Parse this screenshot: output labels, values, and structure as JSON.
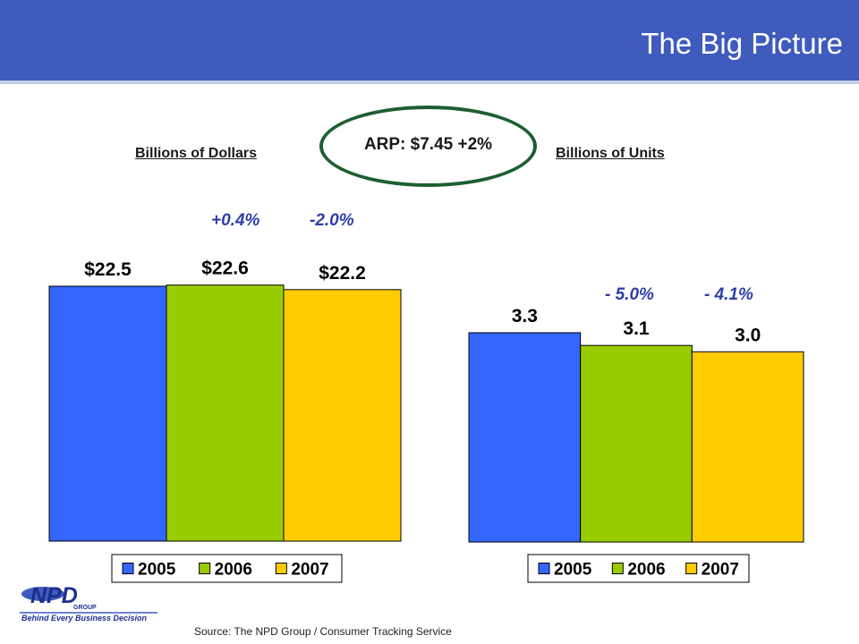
{
  "title": "The Big Picture",
  "arp": "ARP: $7.45  +2%",
  "source": "Source:  The NPD Group / Consumer Tracking Service",
  "logo": {
    "name": "NPD",
    "subtitle": "GROUP",
    "tagline": "Behind Every Business Decision"
  },
  "colors": {
    "header": "#3f5bbd",
    "y2005": "#3366ff",
    "y2006": "#99cc00",
    "y2007": "#ffcc00",
    "oval": "#1e5e32"
  },
  "chart_data": [
    {
      "type": "bar",
      "subtitle": "Billions of Dollars",
      "categories": [
        "2005",
        "2006",
        "2007"
      ],
      "values": [
        22.5,
        22.6,
        22.2
      ],
      "data_labels": [
        "$22.5",
        "$22.6",
        "$22.2"
      ],
      "changes": [
        "+0.4%",
        "-2.0%"
      ],
      "legend": [
        "2005",
        "2006",
        "2007"
      ],
      "legend_position": "bottom",
      "ymin": 0
    },
    {
      "type": "bar",
      "subtitle": "Billions of Units",
      "categories": [
        "2005",
        "2006",
        "2007"
      ],
      "values": [
        3.3,
        3.1,
        3.0
      ],
      "data_labels": [
        "3.3",
        "3.1",
        "3.0"
      ],
      "changes": [
        "- 5.0%",
        "- 4.1%"
      ],
      "legend": [
        "2005",
        "2006",
        "2007"
      ],
      "legend_position": "bottom",
      "ymin": 0
    }
  ]
}
